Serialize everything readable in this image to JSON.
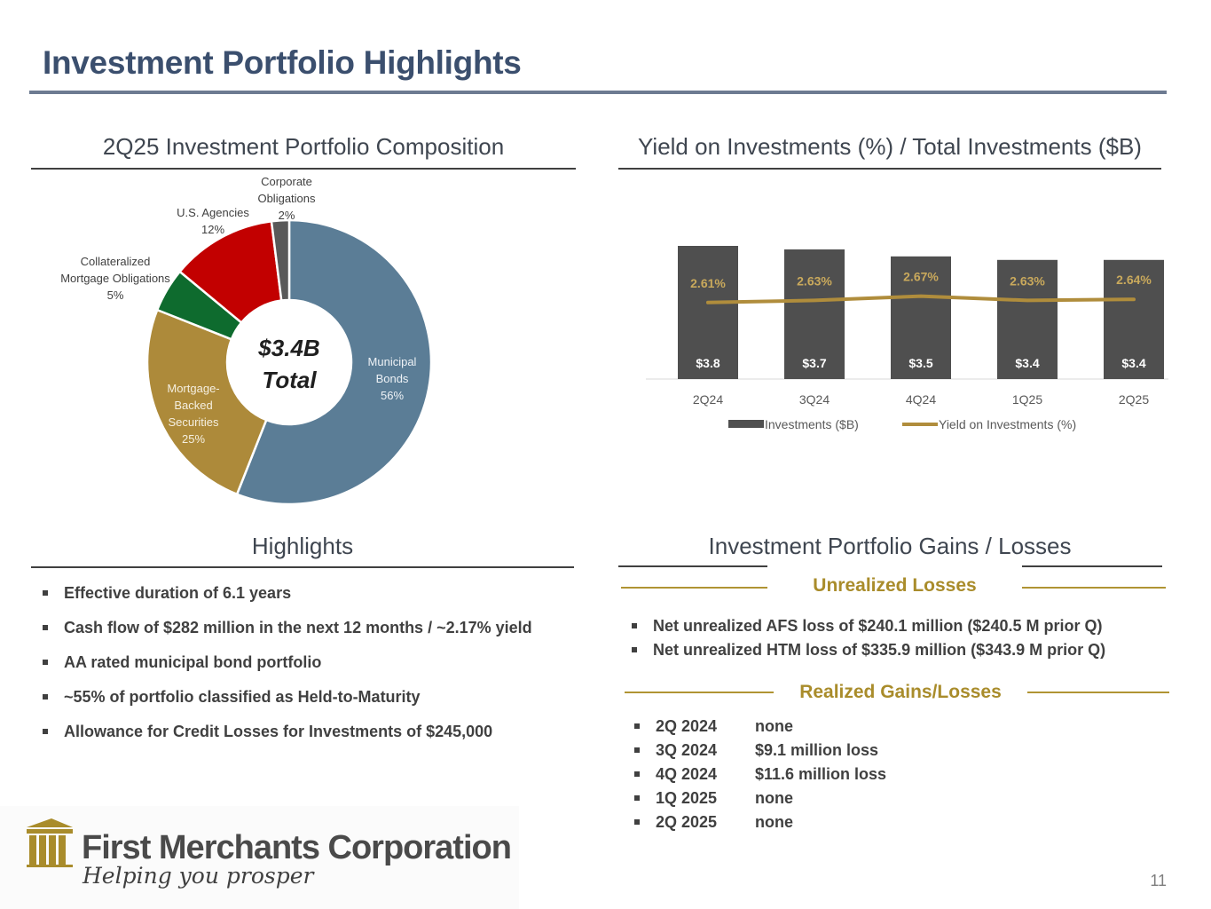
{
  "title": "Investment Portfolio Highlights",
  "composition": {
    "heading": "2Q25 Investment Portfolio Composition",
    "center_line1": "$3.4B",
    "center_line2": "Total"
  },
  "yield_section": {
    "heading": "Yield on Investments (%) / Total Investments ($B)"
  },
  "highlights": {
    "heading": "Highlights",
    "items": [
      "Effective duration of 6.1 years",
      "Cash flow of $282 million in the next 12 months / ~2.17% yield",
      "AA rated municipal bond portfolio",
      "~55% of portfolio classified as Held-to-Maturity",
      "Allowance for Credit Losses for Investments of $245,000"
    ]
  },
  "gains_losses": {
    "heading": "Investment Portfolio Gains / Losses",
    "unrealized_title": "Unrealized Losses",
    "unrealized_items": [
      "Net unrealized AFS loss of $240.1 million ($240.5 M prior Q)",
      "Net unrealized HTM loss of $335.9 million ($343.9 M prior Q)"
    ],
    "realized_title": "Realized Gains/Losses",
    "realized_items": [
      {
        "period": "2Q 2024",
        "value": "none"
      },
      {
        "period": "3Q 2024",
        "value": "$9.1 million loss"
      },
      {
        "period": "4Q 2024",
        "value": "$11.6 million loss"
      },
      {
        "period": "1Q 2025",
        "value": "none"
      },
      {
        "period": "2Q 2025",
        "value": "none"
      }
    ]
  },
  "logo": {
    "name": "First Merchants Corporation",
    "tagline": "Helping you prosper"
  },
  "page_number": "11",
  "colors": {
    "title": "#3b4f6e",
    "gold": "#a98c2b",
    "bar": "#4f4f4f",
    "line": "#b08d3c"
  },
  "chart_data": [
    {
      "type": "pie",
      "title": "2Q25 Investment Portfolio Composition",
      "donut": true,
      "slices": [
        {
          "label": "Municipal Bonds",
          "label_lines": [
            "Municipal",
            "Bonds"
          ],
          "value": 56,
          "value_label": "56%",
          "color": "#5b7d96"
        },
        {
          "label": "Mortgage-Backed Securities",
          "label_lines": [
            "Mortgage-",
            "Backed",
            "Securities"
          ],
          "value": 25,
          "value_label": "25%",
          "color": "#ad8a3a"
        },
        {
          "label": "Collateralized Mortgage Obligations",
          "label_lines": [
            "Collateralized",
            "Mortgage Obligations"
          ],
          "value": 5,
          "value_label": "5%",
          "color": "#0e6b2e"
        },
        {
          "label": "U.S. Agencies",
          "label_lines": [
            "U.S. Agencies"
          ],
          "value": 12,
          "value_label": "12%",
          "color": "#c20000"
        },
        {
          "label": "Corporate Obligations",
          "label_lines": [
            "Corporate",
            "Obligations"
          ],
          "value": 2,
          "value_label": "2%",
          "color": "#595959"
        }
      ]
    },
    {
      "type": "bar",
      "title": "Yield on Investments (%) / Total Investments ($B)",
      "categories": [
        "2Q24",
        "3Q24",
        "4Q24",
        "1Q25",
        "2Q25"
      ],
      "series": [
        {
          "name": "Investments ($B)",
          "type": "bar",
          "values": [
            3.8,
            3.7,
            3.5,
            3.4,
            3.4
          ],
          "labels": [
            "$3.8",
            "$3.7",
            "$3.5",
            "$3.4",
            "$3.4"
          ],
          "color": "#4f4f4f"
        },
        {
          "name": "Yield on Investments (%)",
          "type": "line",
          "values": [
            2.61,
            2.63,
            2.67,
            2.63,
            2.64
          ],
          "labels": [
            "2.61%",
            "2.63%",
            "2.67%",
            "2.63%",
            "2.64%"
          ],
          "color": "#b08d3c"
        }
      ],
      "legend": "bottom",
      "grid": false
    }
  ]
}
